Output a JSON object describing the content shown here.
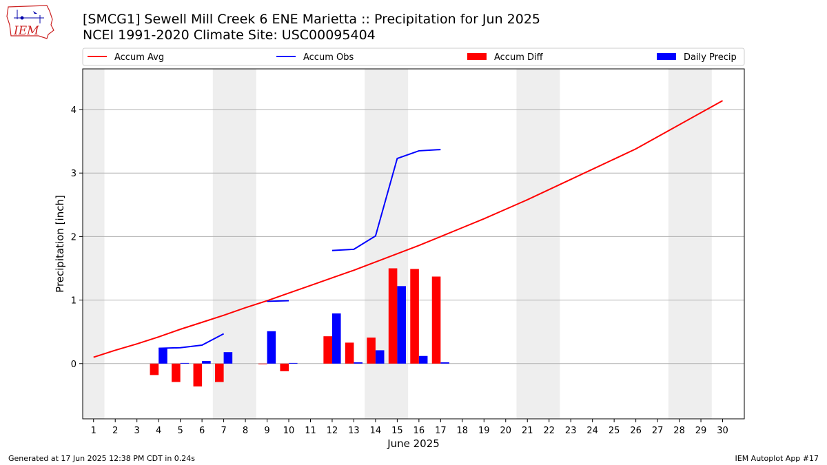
{
  "header": {
    "title_line1": "[SMCG1] Sewell Mill Creek 6 ENE Marietta :: Precipitation for Jun 2025",
    "title_line2": "NCEI 1991-2020 Climate Site: USC00095404"
  },
  "logo": {
    "text": "IEM",
    "icon": "iem-iowa-logo-icon"
  },
  "footer": {
    "left": "Generated at 17 Jun 2025 12:38 PM CDT in 0.24s",
    "right": "IEM Autoplot App #17"
  },
  "colors": {
    "accum_avg": "#ff0000",
    "accum_obs": "#0000ff",
    "accum_diff": "#ff0000",
    "daily_precip": "#0000ff",
    "weekend_shade": "#eeeeee",
    "grid": "#b0b0b0"
  },
  "chart_data": {
    "type": "bar",
    "xlabel": "June 2025",
    "ylabel": "Precipitation [inch]",
    "xlim": [
      0.5,
      31
    ],
    "ylim": [
      -0.87,
      4.64
    ],
    "x_ticks": [
      1,
      2,
      3,
      4,
      5,
      6,
      7,
      8,
      9,
      10,
      11,
      12,
      13,
      14,
      15,
      16,
      17,
      18,
      19,
      20,
      21,
      22,
      23,
      24,
      25,
      26,
      27,
      28,
      29,
      30
    ],
    "y_ticks": [
      0,
      1,
      2,
      3,
      4
    ],
    "grid": "horizontal",
    "legend_placement": "top",
    "shaded_weekend_spans": [
      [
        0.5,
        1.5
      ],
      [
        6.5,
        8.5
      ],
      [
        13.5,
        15.5
      ],
      [
        20.5,
        22.5
      ],
      [
        27.5,
        29.5
      ]
    ],
    "legend": [
      "Accum Avg",
      "Accum Obs",
      "Accum Diff",
      "Daily Precip"
    ],
    "series": [
      {
        "name": "Accum Avg",
        "kind": "line",
        "x": [
          1,
          2,
          3,
          4,
          5,
          6,
          7,
          8,
          9,
          10,
          11,
          12,
          13,
          14,
          15,
          16,
          17,
          18,
          19,
          20,
          21,
          22,
          23,
          24,
          25,
          26,
          27,
          28,
          29,
          30
        ],
        "values": [
          0.1,
          0.21,
          0.31,
          0.42,
          0.54,
          0.65,
          0.76,
          0.88,
          0.99,
          1.11,
          1.23,
          1.35,
          1.47,
          1.6,
          1.73,
          1.86,
          2.0,
          2.14,
          2.28,
          2.43,
          2.58,
          2.74,
          2.9,
          3.06,
          3.22,
          3.38,
          3.57,
          3.76,
          3.95,
          4.14
        ]
      },
      {
        "name": "Accum Obs",
        "kind": "line",
        "segments": [
          {
            "x": [
              4,
              5,
              6,
              7
            ],
            "values": [
              0.24,
              0.25,
              0.29,
              0.47
            ]
          },
          {
            "x": [
              9,
              10
            ],
            "values": [
              0.98,
              0.99
            ]
          },
          {
            "x": [
              12,
              13,
              14,
              15,
              16,
              17
            ],
            "values": [
              1.78,
              1.8,
              2.01,
              3.23,
              3.35,
              3.37
            ]
          }
        ]
      },
      {
        "name": "Accum Diff",
        "kind": "bar",
        "x": [
          4,
          5,
          6,
          7,
          9,
          10,
          12,
          13,
          14,
          15,
          16,
          17
        ],
        "values": [
          -0.18,
          -0.29,
          -0.36,
          -0.29,
          -0.01,
          -0.12,
          0.43,
          0.33,
          0.41,
          1.5,
          1.49,
          1.37
        ]
      },
      {
        "name": "Daily Precip",
        "kind": "bar",
        "x": [
          4,
          5,
          6,
          7,
          9,
          10,
          12,
          13,
          14,
          15,
          16,
          17
        ],
        "values": [
          0.24,
          0.01,
          0.04,
          0.18,
          0.51,
          0.01,
          0.79,
          0.02,
          0.21,
          1.22,
          0.12,
          0.02
        ]
      }
    ]
  }
}
